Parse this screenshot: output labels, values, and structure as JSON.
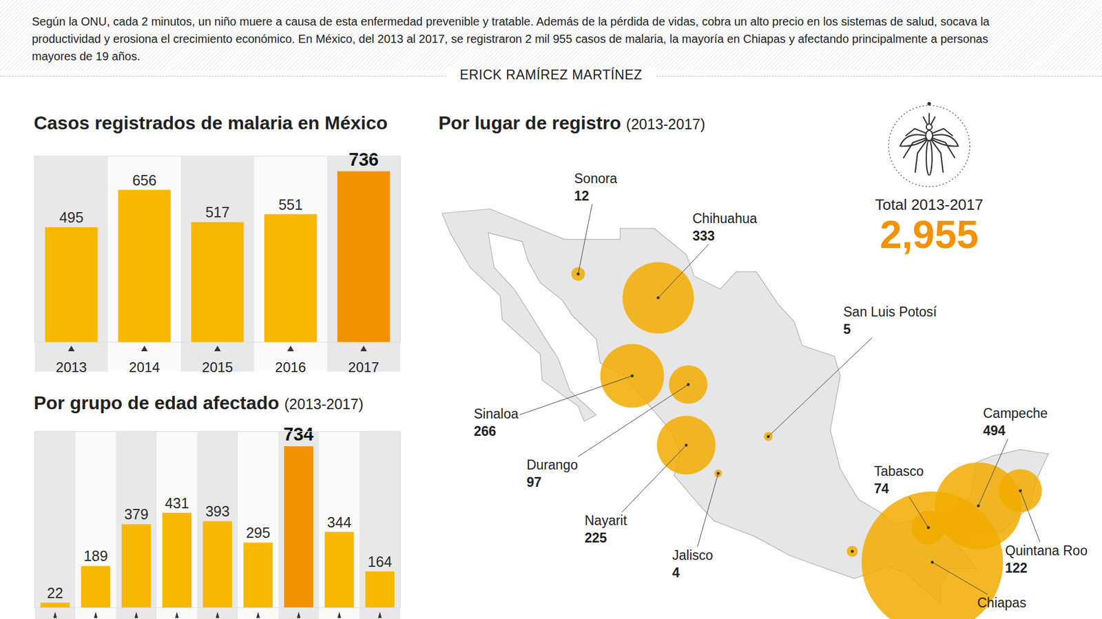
{
  "header": {
    "text": "Según la ONU, cada 2 minutos, un niño muere a causa de esta enfermedad prevenible y tratable. Además de la pérdida de vidas, cobra un alto precio en los sistemas de salud, socava la productividad y erosiona el crecimiento económico. En México, del 2013 al 2017, se registraron 2 mil 955 casos de malaria, la mayoría en Chiapas y afectando principalmente a personas mayores de 19 años.",
    "author": "ERICK RAMÍREZ MARTÍNEZ"
  },
  "chart_data": [
    {
      "type": "bar",
      "title": "Casos registrados de malaria en México",
      "categories": [
        "2013",
        "2014",
        "2015",
        "2016",
        "2017"
      ],
      "values": [
        495,
        656,
        517,
        551,
        736
      ],
      "colors": [
        "#f9b800",
        "#f9b800",
        "#f9b800",
        "#f9b800",
        "#f39200"
      ],
      "ylim": [
        0,
        800
      ],
      "grid": false,
      "data_labels": true,
      "tick_labels": "x"
    },
    {
      "type": "bar",
      "title": "Por grupo de edad afectado",
      "subtitle": "(2013-2017)",
      "categories": [
        null,
        null,
        null,
        null,
        null,
        null,
        null,
        null,
        null
      ],
      "values": [
        22,
        189,
        379,
        431,
        393,
        295,
        734,
        344,
        164
      ],
      "colors": [
        "#f9b800",
        "#f9b800",
        "#f9b800",
        "#f9b800",
        "#f9b800",
        "#f9b800",
        "#f39200",
        "#f9b800",
        "#f9b800"
      ],
      "ylim": [
        0,
        800
      ],
      "grid": false,
      "data_labels": true,
      "tick_labels": false
    },
    {
      "type": "map",
      "title": "Por lugar de registro",
      "subtitle": "(2013-2017)",
      "color": "#f2ab00",
      "data_labels": true,
      "points": [
        {
          "name": "Sonora",
          "value": 12
        },
        {
          "name": "Chihuahua",
          "value": 333
        },
        {
          "name": "Sinaloa",
          "value": 266
        },
        {
          "name": "Durango",
          "value": 97
        },
        {
          "name": "Nayarit",
          "value": 225
        },
        {
          "name": "Jalisco",
          "value": 4
        },
        {
          "name": "San Luis Potosí",
          "value": 5
        },
        {
          "name": "Tabasco",
          "value": 74
        },
        {
          "name": "Campeche",
          "value": 494
        },
        {
          "name": "Quintana Roo",
          "value": 122
        },
        {
          "name": "Chiapas",
          "value": 1310,
          "data_labels": false
        },
        {
          "name": null,
          "value": 8
        }
      ],
      "total": {
        "label": "Total 2013-2017",
        "value": "2,955"
      }
    }
  ]
}
